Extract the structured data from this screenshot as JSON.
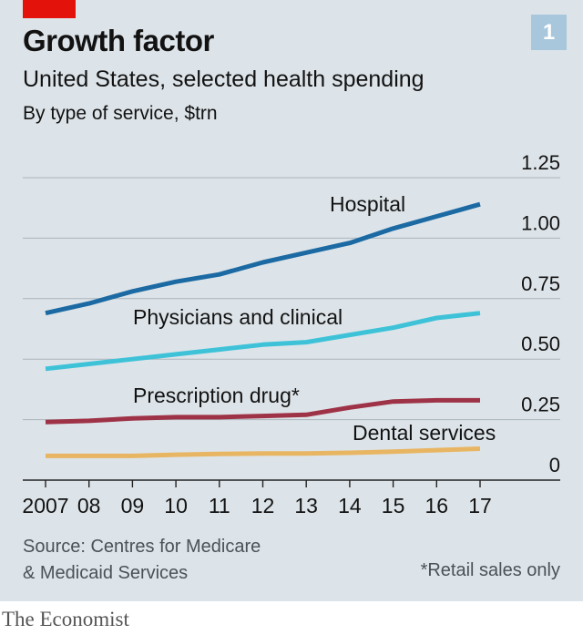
{
  "header": {
    "title": "Growth factor",
    "subtitle": "United States, selected health spending",
    "unit": "By type of service, $trn",
    "badge": "1"
  },
  "footer": {
    "source_line1": "Source: Centres for Medicare",
    "source_line2": "& Medicaid Services",
    "footnote": "*Retail sales only",
    "brand": "The Economist"
  },
  "colors": {
    "hospital": "#1c6aa3",
    "physicians": "#3ec2d8",
    "prescription": "#9e3246",
    "dental": "#e8b562",
    "background": "#dde4e9",
    "accent": "#e3120b"
  },
  "chart_data": {
    "type": "line",
    "x": [
      2007,
      2008,
      2009,
      2010,
      2011,
      2012,
      2013,
      2014,
      2015,
      2016,
      2017
    ],
    "xticklabels": [
      "2007",
      "08",
      "09",
      "10",
      "11",
      "12",
      "13",
      "14",
      "15",
      "16",
      "17"
    ],
    "ylim": [
      0,
      1.25
    ],
    "yticks": [
      0,
      0.25,
      0.5,
      0.75,
      1.0,
      1.25
    ],
    "yticklabels": [
      "0",
      "0.25",
      "0.50",
      "0.75",
      "1.00",
      "1.25"
    ],
    "grid": true,
    "series": [
      {
        "name": "Hospital",
        "color_key": "hospital",
        "values": [
          0.69,
          0.73,
          0.78,
          0.82,
          0.85,
          0.9,
          0.94,
          0.98,
          1.04,
          1.09,
          1.14
        ]
      },
      {
        "name": "Physicians and clinical",
        "color_key": "physicians",
        "values": [
          0.46,
          0.48,
          0.5,
          0.52,
          0.54,
          0.56,
          0.57,
          0.6,
          0.63,
          0.67,
          0.69
        ]
      },
      {
        "name": "Prescription drug*",
        "color_key": "prescription",
        "values": [
          0.24,
          0.245,
          0.255,
          0.26,
          0.26,
          0.265,
          0.27,
          0.3,
          0.325,
          0.33,
          0.33
        ]
      },
      {
        "name": "Dental services",
        "color_key": "dental",
        "values": [
          0.1,
          0.1,
          0.1,
          0.105,
          0.108,
          0.11,
          0.11,
          0.113,
          0.118,
          0.124,
          0.13
        ]
      }
    ]
  }
}
